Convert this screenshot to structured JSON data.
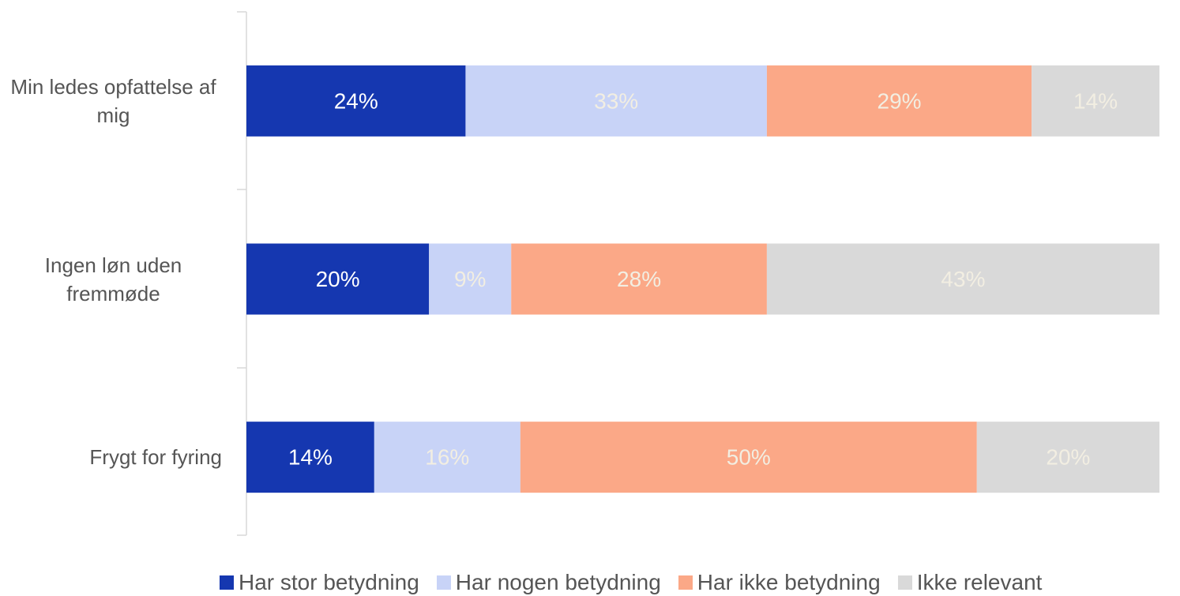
{
  "chart_data": {
    "type": "stacked-bar-horizontal",
    "categories": [
      "Min ledes opfattelse af mig",
      "Ingen løn uden fremmøde",
      "Frygt for fyring"
    ],
    "xlim": [
      0,
      100
    ],
    "series": [
      {
        "name": "Har stor betydning",
        "color": "#1537b0",
        "label_color": "#ffffff",
        "values": [
          24,
          20,
          14
        ],
        "value_labels": [
          "24%",
          "20%",
          "14%"
        ]
      },
      {
        "name": "Har nogen betydning",
        "color": "#c8d3f7",
        "label_color": "#f2eee2",
        "values": [
          33,
          9,
          16
        ],
        "value_labels": [
          "33%",
          "9%",
          "16%"
        ]
      },
      {
        "name": "Har ikke betydning",
        "color": "#fba887",
        "label_color": "#f2eee2",
        "values": [
          29,
          28,
          50
        ],
        "value_labels": [
          "29%",
          "28%",
          "50%"
        ]
      },
      {
        "name": "Ikke relevant",
        "color": "#d9d9d9",
        "label_color": "#f2eee2",
        "values": [
          14,
          43,
          20
        ],
        "value_labels": [
          "14%",
          "43%",
          "20%"
        ]
      }
    ],
    "legend": "bottom"
  }
}
